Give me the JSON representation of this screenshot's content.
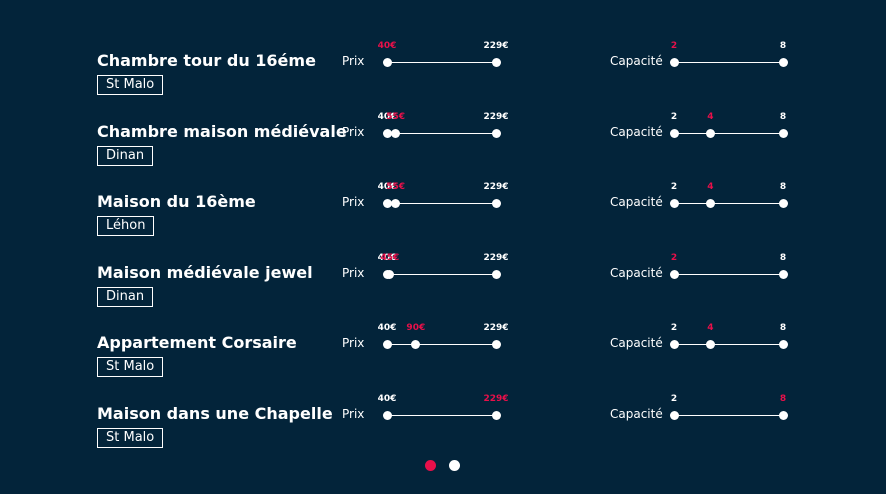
{
  "colors": {
    "background": "#03243a",
    "accent": "#e8104a",
    "foreground": "#ffffff"
  },
  "labels": {
    "price": "Prix",
    "capacity": "Capacité"
  },
  "listings": [
    {
      "name": "Chambre tour du 16éme",
      "city": "St Malo",
      "price": {
        "min": 40,
        "max": 229,
        "ticks": [
          {
            "label": "40€",
            "value": 40,
            "active": true
          },
          {
            "label": "229€",
            "value": 229,
            "active": false
          }
        ]
      },
      "capacity": {
        "min": 2,
        "max": 8,
        "ticks": [
          {
            "label": "2",
            "value": 2,
            "active": true
          },
          {
            "label": "8",
            "value": 8,
            "active": false
          }
        ]
      }
    },
    {
      "name": "Chambre maison médiévale",
      "city": "Dinan",
      "price": {
        "min": 40,
        "max": 229,
        "ticks": [
          {
            "label": "40€",
            "value": 40,
            "active": false
          },
          {
            "label": "55€",
            "value": 55,
            "active": true
          },
          {
            "label": "229€",
            "value": 229,
            "active": false
          }
        ]
      },
      "capacity": {
        "min": 2,
        "max": 8,
        "ticks": [
          {
            "label": "2",
            "value": 2,
            "active": false
          },
          {
            "label": "4",
            "value": 4,
            "active": true
          },
          {
            "label": "8",
            "value": 8,
            "active": false
          }
        ]
      }
    },
    {
      "name": "Maison du 16ème",
      "city": "Léhon",
      "price": {
        "min": 40,
        "max": 229,
        "ticks": [
          {
            "label": "40€",
            "value": 40,
            "active": false
          },
          {
            "label": "55€",
            "value": 55,
            "active": true
          },
          {
            "label": "229€",
            "value": 229,
            "active": false
          }
        ]
      },
      "capacity": {
        "min": 2,
        "max": 8,
        "ticks": [
          {
            "label": "2",
            "value": 2,
            "active": false
          },
          {
            "label": "4",
            "value": 4,
            "active": true
          },
          {
            "label": "8",
            "value": 8,
            "active": false
          }
        ]
      }
    },
    {
      "name": "Maison médiévale jewel",
      "city": "Dinan",
      "price": {
        "min": 40,
        "max": 229,
        "ticks": [
          {
            "label": "40€",
            "value": 40,
            "active": false
          },
          {
            "label": "45€",
            "value": 45,
            "active": true
          },
          {
            "label": "229€",
            "value": 229,
            "active": false
          }
        ]
      },
      "capacity": {
        "min": 2,
        "max": 8,
        "ticks": [
          {
            "label": "2",
            "value": 2,
            "active": true
          },
          {
            "label": "8",
            "value": 8,
            "active": false
          }
        ]
      }
    },
    {
      "name": "Appartement Corsaire",
      "city": "St Malo",
      "price": {
        "min": 40,
        "max": 229,
        "ticks": [
          {
            "label": "40€",
            "value": 40,
            "active": false
          },
          {
            "label": "90€",
            "value": 90,
            "active": true
          },
          {
            "label": "229€",
            "value": 229,
            "active": false
          }
        ]
      },
      "capacity": {
        "min": 2,
        "max": 8,
        "ticks": [
          {
            "label": "2",
            "value": 2,
            "active": false
          },
          {
            "label": "4",
            "value": 4,
            "active": true
          },
          {
            "label": "8",
            "value": 8,
            "active": false
          }
        ]
      }
    },
    {
      "name": "Maison dans une Chapelle",
      "city": "St Malo",
      "price": {
        "min": 40,
        "max": 229,
        "ticks": [
          {
            "label": "40€",
            "value": 40,
            "active": false
          },
          {
            "label": "229€",
            "value": 229,
            "active": true
          }
        ]
      },
      "capacity": {
        "min": 2,
        "max": 8,
        "ticks": [
          {
            "label": "2",
            "value": 2,
            "active": false
          },
          {
            "label": "8",
            "value": 8,
            "active": true
          }
        ]
      }
    }
  ],
  "pagination": {
    "pages": 2,
    "current": 1
  }
}
